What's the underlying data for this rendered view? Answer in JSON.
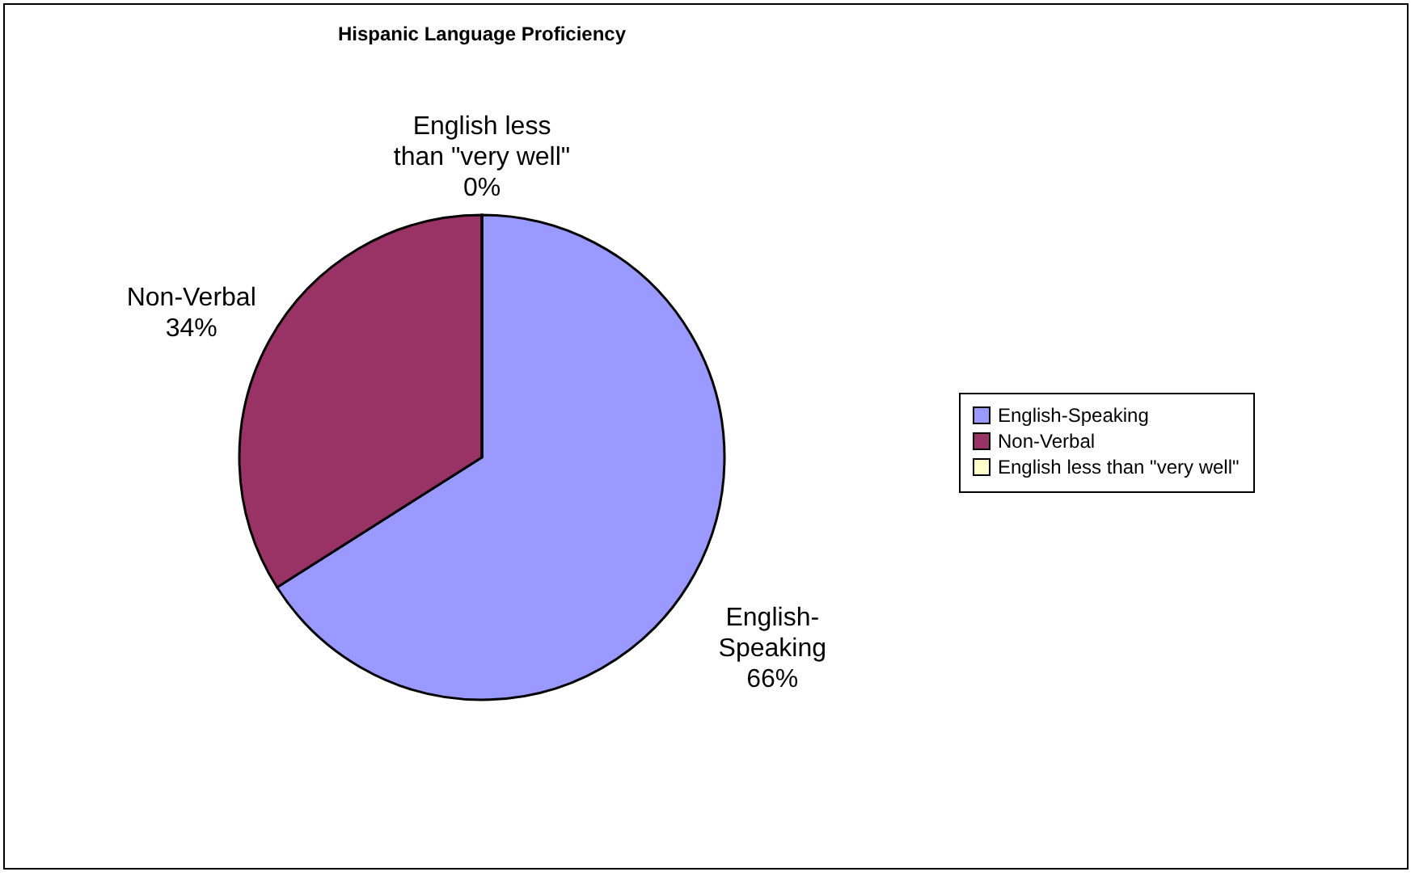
{
  "chart_data": {
    "type": "pie",
    "title": "Hispanic Language Proficiency",
    "categories": [
      "English-Speaking",
      "Non-Verbal",
      "English less than \"very well\""
    ],
    "values": [
      66,
      34,
      0
    ],
    "colors": [
      "#9999ff",
      "#993366",
      "#ffffcc"
    ],
    "value_labels": [
      "66%",
      "34%",
      "0%"
    ],
    "legend": "right"
  }
}
